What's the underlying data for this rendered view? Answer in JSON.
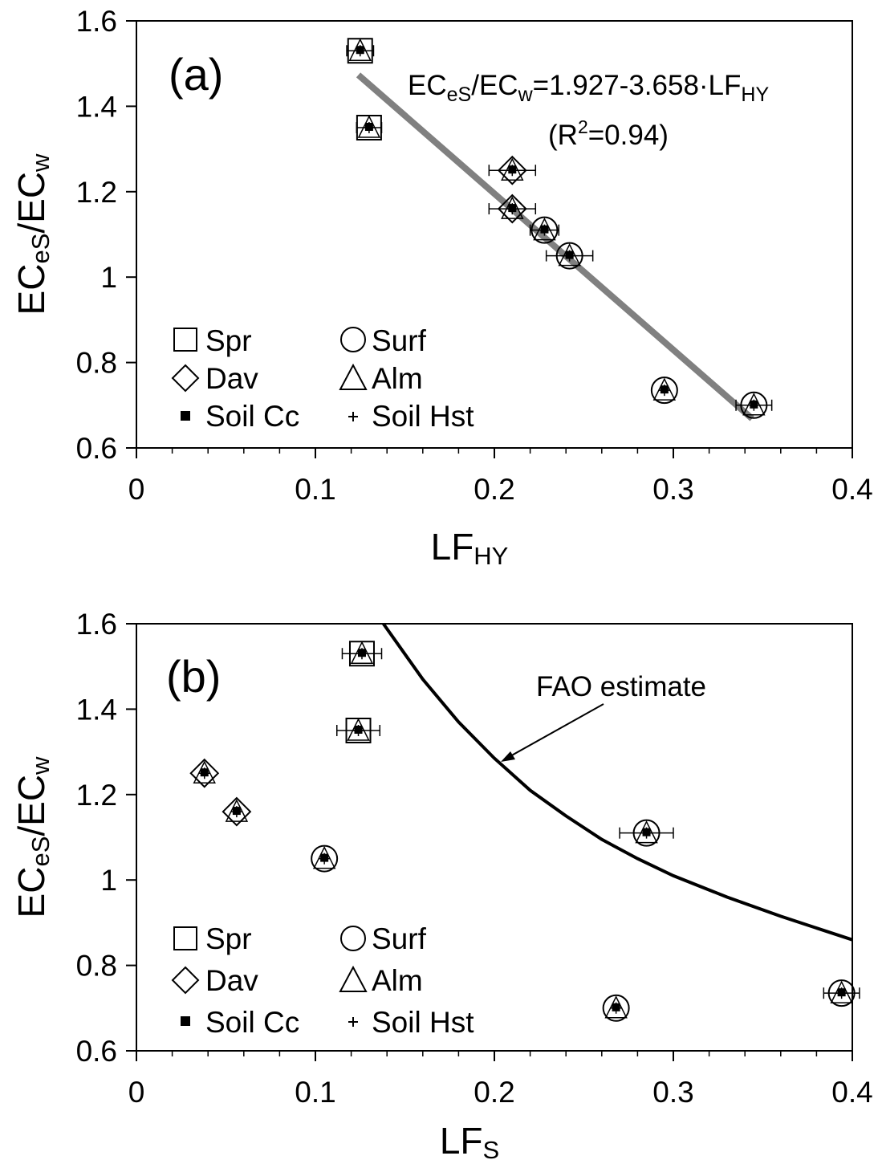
{
  "colors": {
    "axis": "#000000",
    "fit_line": "#808080",
    "fao_curve": "#000000",
    "marker": "#000000"
  },
  "legend_items": [
    {
      "symbol": "square",
      "label": "Spr"
    },
    {
      "symbol": "circle",
      "label": "Surf"
    },
    {
      "symbol": "diamond",
      "label": "Dav"
    },
    {
      "symbol": "triangle",
      "label": "Alm"
    },
    {
      "symbol": "filled-square",
      "label": "Soil Cc"
    },
    {
      "symbol": "plus",
      "label": "Soil Hst"
    }
  ],
  "chart_data": [
    {
      "type": "scatter",
      "panel_label": "(a)",
      "xlabel": {
        "main": "LF",
        "sub": "HY"
      },
      "ylabel": {
        "p1": "EC",
        "s1": "eS",
        "p2": "/EC",
        "s2": "w"
      },
      "xlim": [
        0,
        0.4
      ],
      "ylim": [
        0.6,
        1.6
      ],
      "xticks": [
        "0",
        "0.1",
        "0.2",
        "0.3",
        "0.4"
      ],
      "yticks": [
        "0.6",
        "0.8",
        "1",
        "1.2",
        "1.4",
        "1.6"
      ],
      "grid": false,
      "legend_position": "bottom-left",
      "equation": {
        "p1": "EC",
        "s1": "eS",
        "p2": "/EC",
        "s2": "w",
        "p3": "=1.927-3.658·LF",
        "s3": "HY"
      },
      "r2": {
        "p1": "(R",
        "sup": "2",
        "p2": "=0.94)"
      },
      "fit_line": {
        "intercept": 1.927,
        "slope": -3.658,
        "x": [
          0.124,
          0.344
        ]
      },
      "points": [
        {
          "symbol": "square",
          "x": 0.125,
          "y": 1.53,
          "xerr": 0.0075
        },
        {
          "symbol": "square",
          "x": 0.13,
          "y": 1.35,
          "xerr": 0.007
        },
        {
          "symbol": "diamond",
          "x": 0.21,
          "y": 1.25,
          "xerr": 0.013
        },
        {
          "symbol": "diamond",
          "x": 0.21,
          "y": 1.16,
          "xerr": 0.013
        },
        {
          "symbol": "circle",
          "x": 0.228,
          "y": 1.11,
          "xerr": 0.008
        },
        {
          "symbol": "circle",
          "x": 0.242,
          "y": 1.05,
          "xerr": 0.013
        },
        {
          "symbol": "circle",
          "x": 0.295,
          "y": 0.735,
          "xerr": 0.0
        },
        {
          "symbol": "circle",
          "x": 0.345,
          "y": 0.7,
          "xerr": 0.01
        }
      ]
    },
    {
      "type": "scatter",
      "panel_label": "(b)",
      "xlabel": {
        "main": "LF",
        "sub": "S"
      },
      "ylabel": {
        "p1": "EC",
        "s1": "eS",
        "p2": "/EC",
        "s2": "w"
      },
      "xlim": [
        0,
        0.4
      ],
      "ylim": [
        0.6,
        1.6
      ],
      "xticks": [
        "0",
        "0.1",
        "0.2",
        "0.3",
        "0.4"
      ],
      "yticks": [
        "0.6",
        "0.8",
        "1",
        "1.2",
        "1.4",
        "1.6"
      ],
      "grid": false,
      "legend_position": "bottom-left",
      "curve_label": "FAO estimate",
      "fao_curve": [
        {
          "x": 0.138,
          "y": 1.6
        },
        {
          "x": 0.16,
          "y": 1.47
        },
        {
          "x": 0.18,
          "y": 1.37
        },
        {
          "x": 0.2,
          "y": 1.285
        },
        {
          "x": 0.22,
          "y": 1.21
        },
        {
          "x": 0.24,
          "y": 1.15
        },
        {
          "x": 0.26,
          "y": 1.095
        },
        {
          "x": 0.28,
          "y": 1.05
        },
        {
          "x": 0.3,
          "y": 1.01
        },
        {
          "x": 0.33,
          "y": 0.96
        },
        {
          "x": 0.36,
          "y": 0.915
        },
        {
          "x": 0.4,
          "y": 0.86
        }
      ],
      "points": [
        {
          "symbol": "square",
          "x": 0.126,
          "y": 1.53,
          "xerr": 0.011
        },
        {
          "symbol": "square",
          "x": 0.124,
          "y": 1.35,
          "xerr": 0.012
        },
        {
          "symbol": "diamond",
          "x": 0.038,
          "y": 1.25,
          "xerr": 0.0
        },
        {
          "symbol": "diamond",
          "x": 0.056,
          "y": 1.16,
          "xerr": 0.0
        },
        {
          "symbol": "circle",
          "x": 0.285,
          "y": 1.11,
          "xerr": 0.015
        },
        {
          "symbol": "circle",
          "x": 0.105,
          "y": 1.05,
          "xerr": 0.0
        },
        {
          "symbol": "circle",
          "x": 0.268,
          "y": 0.7,
          "xerr": 0.0
        },
        {
          "symbol": "circle",
          "x": 0.394,
          "y": 0.735,
          "xerr": 0.01
        }
      ]
    }
  ]
}
